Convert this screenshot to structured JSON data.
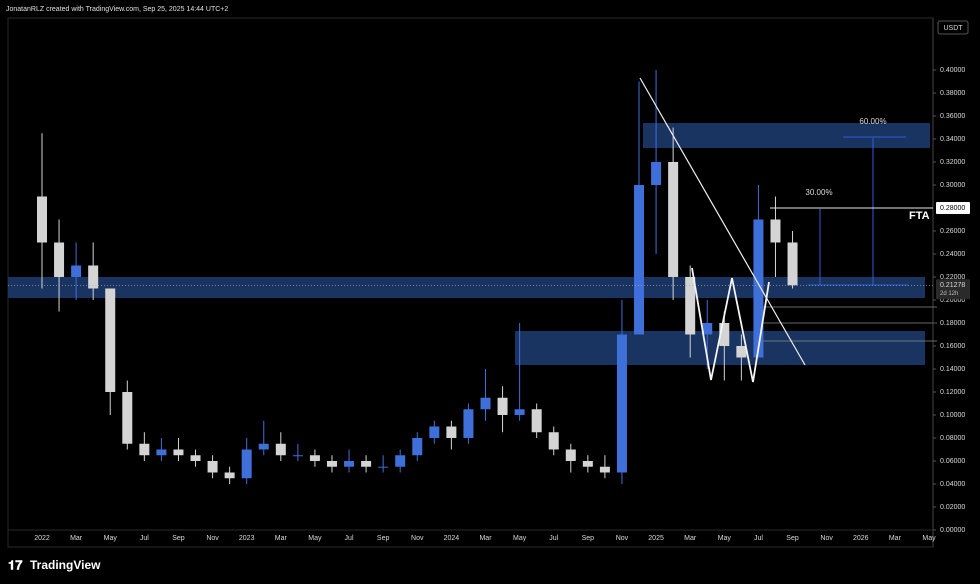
{
  "header": "JonatanRLZ created with TradingView.com, Sep 25, 2025 14:44 UTC+2",
  "footer_brand": "TradingView",
  "chart_data": {
    "type": "candlestick",
    "currency": "USDT",
    "categories": [
      "2022",
      null,
      "Mar",
      null,
      "May",
      null,
      "Jul",
      null,
      "Sep",
      null,
      "Nov",
      null,
      "2023",
      null,
      "Mar",
      null,
      "May",
      null,
      "Jul",
      null,
      "Sep",
      null,
      "Nov",
      null,
      "2024",
      null,
      "Mar",
      null,
      "May",
      null,
      "Jul",
      null,
      "Sep",
      null,
      "Nov",
      null,
      "2025",
      null,
      "Mar",
      null,
      "May",
      null,
      "Jul",
      null,
      "Sep",
      null,
      "Nov",
      null,
      "2026",
      null,
      "Mar",
      null,
      "May"
    ],
    "open": [
      0.29,
      0.25,
      0.22,
      0.23,
      0.21,
      0.12,
      0.075,
      0.065,
      0.07,
      0.065,
      0.06,
      0.05,
      0.045,
      0.07,
      0.075,
      0.065,
      0.065,
      0.06,
      0.055,
      0.06,
      0.055,
      0.055,
      0.065,
      0.08,
      0.09,
      0.08,
      0.105,
      0.115,
      0.1,
      0.105,
      0.085,
      0.07,
      0.06,
      0.055,
      0.05,
      0.17,
      0.3,
      0.32,
      0.22,
      0.17,
      0.18,
      0.16,
      0.15,
      0.27,
      0.25,
      null,
      null,
      null,
      null,
      null,
      null,
      null,
      null
    ],
    "high": [
      0.345,
      0.27,
      0.25,
      0.25,
      0.21,
      0.13,
      0.085,
      0.08,
      0.08,
      0.07,
      0.065,
      0.055,
      0.08,
      0.095,
      0.085,
      0.075,
      0.07,
      0.065,
      0.07,
      0.065,
      0.065,
      0.07,
      0.085,
      0.095,
      0.095,
      0.11,
      0.14,
      0.125,
      0.18,
      0.11,
      0.09,
      0.075,
      0.065,
      0.065,
      0.2,
      0.39,
      0.4,
      0.35,
      0.23,
      0.2,
      0.19,
      0.17,
      0.3,
      0.29,
      0.26,
      null,
      null,
      null,
      null,
      null,
      null,
      null,
      null
    ],
    "low": [
      0.21,
      0.19,
      0.2,
      0.2,
      0.1,
      0.07,
      0.06,
      0.06,
      0.06,
      0.055,
      0.045,
      0.04,
      0.04,
      0.065,
      0.06,
      0.06,
      0.055,
      0.05,
      0.05,
      0.05,
      0.05,
      0.05,
      0.06,
      0.075,
      0.07,
      0.075,
      0.095,
      0.085,
      0.095,
      0.08,
      0.065,
      0.05,
      0.05,
      0.045,
      0.04,
      0.17,
      0.24,
      0.2,
      0.15,
      0.14,
      0.13,
      0.13,
      0.15,
      0.22,
      0.21,
      null,
      null,
      null,
      null,
      null,
      null,
      null,
      null
    ],
    "close": [
      0.25,
      0.22,
      0.23,
      0.21,
      0.12,
      0.075,
      0.065,
      0.07,
      0.065,
      0.06,
      0.05,
      0.045,
      0.07,
      0.075,
      0.065,
      0.065,
      0.06,
      0.055,
      0.06,
      0.055,
      0.055,
      0.065,
      0.08,
      0.09,
      0.08,
      0.105,
      0.115,
      0.1,
      0.105,
      0.085,
      0.07,
      0.06,
      0.055,
      0.05,
      0.17,
      0.3,
      0.32,
      0.22,
      0.17,
      0.18,
      0.16,
      0.15,
      0.27,
      0.25,
      0.21278,
      null,
      null,
      null,
      null,
      null,
      null,
      null,
      null
    ],
    "colors": {
      "up": "#3f6fd8",
      "down": "#d4d4d4"
    },
    "ylim": [
      -0.0087,
      0.4452
    ],
    "yticks": [
      {
        "value": 0,
        "label": "0.00000"
      },
      {
        "value": 0.02,
        "label": "0.02000"
      },
      {
        "value": 0.04,
        "label": "0.04000"
      },
      {
        "value": 0.06,
        "label": "0.06000"
      },
      {
        "value": 0.08,
        "label": "0.08000"
      },
      {
        "value": 0.1,
        "label": "0.10000"
      },
      {
        "value": 0.12,
        "label": "0.12000"
      },
      {
        "value": 0.14,
        "label": "0.14000"
      },
      {
        "value": 0.16,
        "label": "0.16000"
      },
      {
        "value": 0.18,
        "label": "0.18000"
      },
      {
        "value": 0.2,
        "label": "0.20000"
      },
      {
        "value": 0.22,
        "label": "0.22000"
      },
      {
        "value": 0.24,
        "label": "0.24000"
      },
      {
        "value": 0.26,
        "label": "0.26000"
      },
      {
        "value": 0.3,
        "label": "0.30000"
      },
      {
        "value": 0.32,
        "label": "0.32000"
      },
      {
        "value": 0.34,
        "label": "0.34000"
      },
      {
        "value": 0.36,
        "label": "0.36000"
      },
      {
        "value": 0.38,
        "label": "0.38000"
      },
      {
        "value": 0.4,
        "label": "0.40000"
      }
    ],
    "level": {
      "value": 0.28,
      "label": "0.28000"
    },
    "last_price": 0.21278,
    "countdown": "2d 12h",
    "annotations": [
      "60.00%",
      "30.00%",
      "FTA"
    ]
  }
}
